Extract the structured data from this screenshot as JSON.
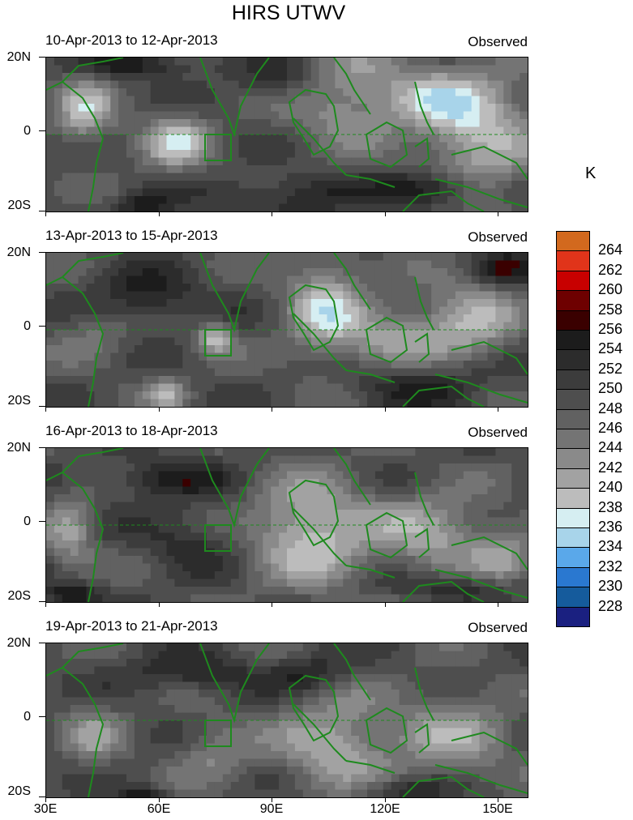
{
  "title": "HIRS UTWV",
  "unit": "K",
  "status_label": "Observed",
  "y_axis_labels": [
    "20N",
    "0",
    "20S"
  ],
  "x_axis_labels": [
    "30E",
    "60E",
    "90E",
    "120E",
    "150E"
  ],
  "panels": [
    {
      "period": "10-Apr-2013 to 12-Apr-2013",
      "status": "Observed"
    },
    {
      "period": "13-Apr-2013 to 15-Apr-2013",
      "status": "Observed"
    },
    {
      "period": "16-Apr-2013 to 18-Apr-2013",
      "status": "Observed"
    },
    {
      "period": "19-Apr-2013 to 21-Apr-2013",
      "status": "Observed"
    }
  ],
  "colorbar": {
    "levels": [
      264,
      262,
      260,
      258,
      256,
      254,
      252,
      250,
      248,
      246,
      244,
      242,
      240,
      238,
      236,
      234,
      232,
      230,
      228
    ],
    "colors": [
      "#d2691e",
      "#e0341a",
      "#c80000",
      "#6e0000",
      "#3a0000",
      "#1c1c1c",
      "#2c2c2c",
      "#3c3c3c",
      "#4e4e4e",
      "#616161",
      "#747474",
      "#8a8a8a",
      "#a2a2a2",
      "#bcbcbc",
      "#d6eef2",
      "#a8d4ea",
      "#5aa8ea",
      "#2a78d0",
      "#155b9c",
      "#1a2080"
    ]
  },
  "colors": {
    "coastline": "#1e8a1e",
    "equator_line": "#1e8a1e"
  }
}
